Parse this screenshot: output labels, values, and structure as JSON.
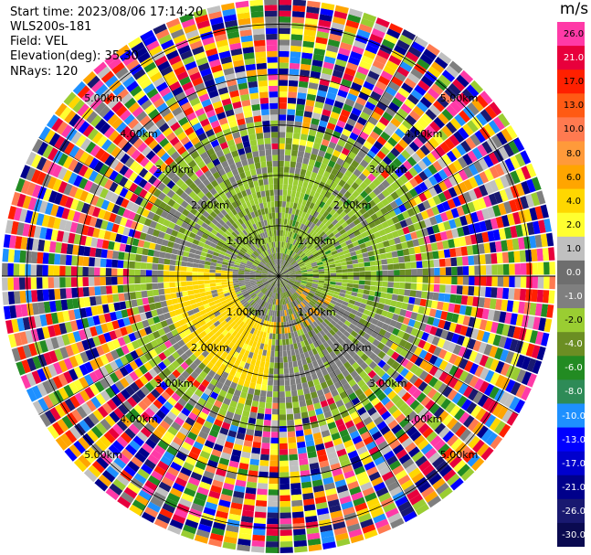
{
  "header": {
    "start_time": "Start time: 2023/08/06 17:14:20",
    "instrument": "WLS200s-181",
    "field": "Field: VEL",
    "elevation": "Elevation(deg): 35.30",
    "nrays": "NRays: 120"
  },
  "colorbar": {
    "unit": "m/s",
    "levels": [
      {
        "label": "26.0",
        "color": "#ff3aa7"
      },
      {
        "label": "21.0",
        "color": "#e8003c"
      },
      {
        "label": "17.0",
        "color": "#ff2000"
      },
      {
        "label": "13.0",
        "color": "#ff5a14"
      },
      {
        "label": "10.0",
        "color": "#ff7a50"
      },
      {
        "label": "8.0",
        "color": "#ff9a3a"
      },
      {
        "label": "6.0",
        "color": "#ffa500"
      },
      {
        "label": "4.0",
        "color": "#ffd700"
      },
      {
        "label": "2.0",
        "color": "#ffff30"
      },
      {
        "label": "1.0",
        "color": "#c0c0c0"
      },
      {
        "label": "0.0",
        "color": "#6e6e6e"
      },
      {
        "label": "-1.0",
        "color": "#7f7f7f"
      },
      {
        "label": "-2.0",
        "color": "#9acd32"
      },
      {
        "label": "-4.0",
        "color": "#6b8e23"
      },
      {
        "label": "-6.0",
        "color": "#228b22"
      },
      {
        "label": "-8.0",
        "color": "#2e8b57"
      },
      {
        "label": "-10.0",
        "color": "#1e90ff"
      },
      {
        "label": "-13.0",
        "color": "#0000ff"
      },
      {
        "label": "-17.0",
        "color": "#0000cd"
      },
      {
        "label": "-21.0",
        "color": "#00008b"
      },
      {
        "label": "-26.0",
        "color": "#191970"
      },
      {
        "label": "-30.0",
        "color": "#0a0a50"
      }
    ]
  },
  "rings": {
    "labels": [
      "1.00km",
      "2.00km",
      "3.00km",
      "4.00km",
      "5.00km"
    ],
    "max_range_km": 5.5
  }
}
